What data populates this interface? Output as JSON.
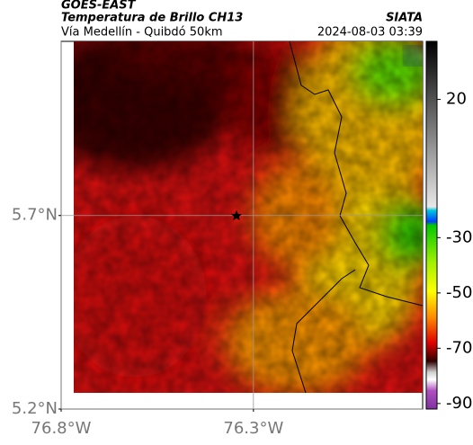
{
  "header": {
    "title": "GOES-EAST",
    "subtitle": "Temperatura de Brillo CH13",
    "source": "SIATA",
    "route": "Vía Medellín - Quibdó 50km",
    "timestamp": "2024-08-03 03:39"
  },
  "map": {
    "latlim": [
      5.2,
      6.15
    ],
    "lonlim": [
      -76.8,
      -75.86
    ],
    "lat_ticks": [
      {
        "value": 5.7,
        "label": "5.7°N"
      },
      {
        "value": 5.2,
        "label": "5.2°N"
      }
    ],
    "lon_ticks": [
      {
        "value": -76.8,
        "label": "76.8°W"
      },
      {
        "value": -76.3,
        "label": "76.3°W"
      }
    ],
    "grid": true
  },
  "colorbar": {
    "lim": [
      -92,
      41
    ],
    "ticks": [
      20,
      -30,
      -50,
      -70,
      -90
    ]
  }
}
